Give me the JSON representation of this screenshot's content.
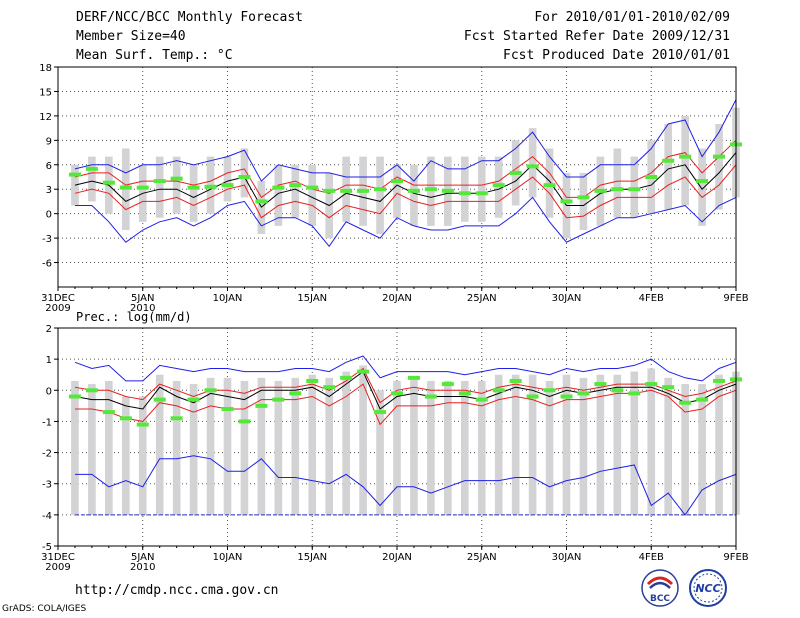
{
  "header": {
    "title": "DERF/NCC/BCC Monthly Forecast",
    "member_size": "Member Size=40",
    "variable": "Mean Surf. Temp.: °C",
    "period": "For 2010/01/01-2010/02/09",
    "started": "Fcst Started Refer Date 2009/12/31",
    "produced": "Fcst Produced Date 2010/01/01"
  },
  "footer": {
    "url": "http://cmdp.ncc.cma.gov.cn",
    "grads": "GrADS: COLA/IGES",
    "logo_bcc": "BCC",
    "logo_ncc": "NCC"
  },
  "colors": {
    "box": "#d3d3d5",
    "median": "#000000",
    "inner_band": "#e8201f",
    "outer_band": "#1f1fe8",
    "climate_mark": "#55e83a",
    "grid": "#555555"
  },
  "chart_data": [
    {
      "type": "box",
      "name": "temperature",
      "title": "Mean Surf. Temp.: °C",
      "ylim": [
        -9,
        18
      ],
      "yticks": [
        -6,
        -3,
        0,
        3,
        6,
        9,
        12,
        15,
        18
      ],
      "xlabels": [
        {
          "day": 0,
          "line1": "31DEC",
          "line2": "2009"
        },
        {
          "day": 5,
          "line1": "5JAN",
          "line2": "2010"
        },
        {
          "day": 10,
          "line1": "10JAN",
          "line2": ""
        },
        {
          "day": 15,
          "line1": "15JAN",
          "line2": ""
        },
        {
          "day": 20,
          "line1": "20JAN",
          "line2": ""
        },
        {
          "day": 25,
          "line1": "25JAN",
          "line2": ""
        },
        {
          "day": 30,
          "line1": "30JAN",
          "line2": ""
        },
        {
          "day": 35,
          "line1": "4FEB",
          "line2": ""
        },
        {
          "day": 40,
          "line1": "9FEB",
          "line2": ""
        }
      ],
      "days": [
        1,
        2,
        3,
        4,
        5,
        6,
        7,
        8,
        9,
        10,
        11,
        12,
        13,
        14,
        15,
        16,
        17,
        18,
        19,
        20,
        21,
        22,
        23,
        24,
        25,
        26,
        27,
        28,
        29,
        30,
        31,
        32,
        33,
        34,
        35,
        36,
        37,
        38,
        39,
        40
      ],
      "median": [
        3.5,
        4,
        3.5,
        1.5,
        2.5,
        3,
        3,
        2,
        3,
        4,
        4.5,
        0.8,
        2.5,
        3,
        2,
        1,
        2.5,
        2,
        1.5,
        3.5,
        2.5,
        2,
        2.5,
        2.5,
        2.5,
        3,
        4,
        6,
        4,
        1,
        1,
        2.5,
        3,
        3,
        3.5,
        5.5,
        6,
        3,
        5,
        7.5
      ],
      "inner_upper": [
        4.5,
        5,
        5,
        3.5,
        4,
        4,
        4,
        3.5,
        4,
        5,
        5.5,
        2,
        3.5,
        4,
        3,
        2.5,
        3.5,
        3.5,
        3,
        4.5,
        3.5,
        3.5,
        3.5,
        3.5,
        3.5,
        4,
        5.5,
        7,
        5,
        2,
        2,
        3.5,
        4,
        4,
        5,
        7,
        7.5,
        5,
        7,
        9
      ],
      "inner_lower": [
        2.5,
        3,
        2.5,
        0.5,
        1.5,
        1.5,
        2,
        1,
        2,
        3,
        3.5,
        -0.5,
        1,
        1.5,
        1,
        -0.5,
        1,
        0.5,
        0,
        2.5,
        1.5,
        1,
        1.5,
        1.5,
        1.5,
        1.5,
        3,
        4.5,
        2.5,
        -0.5,
        -0.3,
        1,
        2,
        2,
        2,
        3.5,
        4.5,
        2,
        3.5,
        6
      ],
      "outer_upper": [
        5.5,
        6,
        6,
        5,
        6,
        6,
        6.5,
        6,
        6.5,
        7,
        7.8,
        4,
        6,
        5.5,
        5,
        5,
        4.5,
        4.5,
        4.5,
        6,
        4,
        6.5,
        5.5,
        5.5,
        6.5,
        6.5,
        8,
        10,
        7,
        4.5,
        4.5,
        6,
        6,
        6,
        8,
        11,
        11.5,
        7,
        10,
        14
      ],
      "outer_lower": [
        1,
        1,
        -1,
        -3.5,
        -2,
        -1,
        -0.5,
        -1.5,
        -0.5,
        1,
        1.5,
        -1.5,
        -0.5,
        -0.5,
        -1.5,
        -4,
        -1,
        -2,
        -3,
        -0.5,
        -1.5,
        -2,
        -2,
        -1.5,
        -1.5,
        -1.5,
        0,
        2,
        -1,
        -3.5,
        -2.5,
        -1.5,
        -0.5,
        -0.5,
        0,
        0.5,
        1,
        -1,
        1,
        2
      ],
      "box_high": [
        6,
        7,
        7,
        8,
        6,
        7,
        7,
        6,
        7,
        7,
        8,
        4,
        6,
        6,
        6,
        5,
        7,
        7,
        7,
        6,
        6,
        7,
        7,
        7,
        7,
        7,
        9,
        10.5,
        8,
        5,
        5,
        7,
        8,
        7,
        9,
        11,
        12,
        8,
        11,
        13
      ],
      "box_low": [
        1,
        1.5,
        0,
        -2,
        -1,
        -0.5,
        0,
        -1,
        0,
        1.5,
        2,
        -2.5,
        -1.5,
        -0.5,
        -1.5,
        -3,
        -1,
        -1.5,
        -2.5,
        -0.5,
        -1.5,
        -1.5,
        -1.5,
        -1,
        -1,
        -0.5,
        1,
        2,
        -0.5,
        -3,
        -2,
        -1.5,
        -0.5,
        -0.5,
        0,
        0.5,
        1,
        -1.5,
        0.5,
        2
      ],
      "climate": [
        4.8,
        5.5,
        3.8,
        3.2,
        3.2,
        4,
        4.3,
        3.2,
        3.3,
        3.5,
        4.5,
        1.5,
        3.2,
        3.5,
        3.2,
        2.8,
        2.8,
        2.8,
        3,
        4,
        2.8,
        3,
        2.8,
        2.5,
        2.5,
        3.5,
        5,
        5.8,
        3.5,
        1.5,
        2,
        2.8,
        3,
        3,
        4.5,
        6.5,
        7,
        4,
        7,
        8.5
      ]
    },
    {
      "type": "box",
      "name": "precipitation",
      "title": "Prec.: log(mm/d)",
      "ylim": [
        -5,
        2
      ],
      "yticks": [
        -5,
        -4,
        -3,
        -2,
        -1,
        0,
        1,
        2
      ],
      "xlabels": [
        {
          "day": 0,
          "line1": "31DEC",
          "line2": "2009"
        },
        {
          "day": 5,
          "line1": "5JAN",
          "line2": "2010"
        },
        {
          "day": 10,
          "line1": "10JAN",
          "line2": ""
        },
        {
          "day": 15,
          "line1": "15JAN",
          "line2": ""
        },
        {
          "day": 20,
          "line1": "20JAN",
          "line2": ""
        },
        {
          "day": 25,
          "line1": "25JAN",
          "line2": ""
        },
        {
          "day": 30,
          "line1": "30JAN",
          "line2": ""
        },
        {
          "day": 35,
          "line1": "4FEB",
          "line2": ""
        },
        {
          "day": 40,
          "line1": "9FEB",
          "line2": ""
        }
      ],
      "days": [
        1,
        2,
        3,
        4,
        5,
        6,
        7,
        8,
        9,
        10,
        11,
        12,
        13,
        14,
        15,
        16,
        17,
        18,
        19,
        20,
        21,
        22,
        23,
        24,
        25,
        26,
        27,
        28,
        29,
        30,
        31,
        32,
        33,
        34,
        35,
        36,
        37,
        38,
        39,
        40
      ],
      "median": [
        -0.2,
        -0.3,
        -0.3,
        -0.5,
        -0.6,
        0.1,
        -0.2,
        -0.4,
        -0.1,
        -0.2,
        -0.3,
        0,
        0,
        0,
        0.1,
        -0.2,
        0.2,
        0.6,
        -0.6,
        -0.2,
        -0.1,
        -0.2,
        -0.2,
        -0.2,
        -0.3,
        -0.1,
        0.1,
        0,
        -0.2,
        0,
        -0.1,
        0,
        0.1,
        0.1,
        0.1,
        -0.1,
        -0.4,
        -0.3,
        0,
        0.2
      ],
      "inner_upper": [
        0.1,
        0,
        0,
        -0.2,
        -0.3,
        0.2,
        0,
        -0.2,
        0,
        0,
        -0.1,
        0.1,
        0.1,
        0.1,
        0.2,
        0,
        0.3,
        0.7,
        -0.4,
        0,
        0.1,
        0,
        0,
        0,
        -0.1,
        0.1,
        0.2,
        0.1,
        0,
        0.1,
        0,
        0.1,
        0.2,
        0.2,
        0.2,
        0,
        -0.2,
        -0.1,
        0.1,
        0.3
      ],
      "inner_lower": [
        -0.6,
        -0.6,
        -0.7,
        -0.9,
        -1,
        -0.4,
        -0.5,
        -0.7,
        -0.5,
        -0.6,
        -0.6,
        -0.3,
        -0.3,
        -0.3,
        -0.2,
        -0.5,
        -0.2,
        0.2,
        -1.1,
        -0.5,
        -0.5,
        -0.5,
        -0.4,
        -0.4,
        -0.5,
        -0.3,
        -0.2,
        -0.3,
        -0.5,
        -0.3,
        -0.3,
        -0.2,
        -0.1,
        -0.1,
        0,
        -0.2,
        -0.7,
        -0.6,
        -0.2,
        0
      ],
      "outer_upper": [
        0.9,
        0.7,
        0.8,
        0.3,
        0.3,
        0.8,
        0.7,
        0.6,
        0.7,
        0.7,
        0.6,
        0.6,
        0.6,
        0.7,
        0.7,
        0.6,
        0.9,
        1.1,
        0.4,
        0.6,
        0.6,
        0.6,
        0.6,
        0.5,
        0.6,
        0.7,
        0.7,
        0.6,
        0.5,
        0.7,
        0.6,
        0.7,
        0.7,
        0.8,
        1,
        0.6,
        0.4,
        0.3,
        0.7,
        0.9
      ],
      "outer_lower": [
        -2.7,
        -2.7,
        -3.1,
        -2.9,
        -3.1,
        -2.2,
        -2.2,
        -2.1,
        -2.2,
        -2.6,
        -2.6,
        -2.2,
        -2.8,
        -2.8,
        -2.9,
        -3,
        -2.7,
        -3.1,
        -3.7,
        -3.1,
        -3.1,
        -3.3,
        -3.1,
        -2.9,
        -2.9,
        -2.9,
        -2.8,
        -2.8,
        -3.1,
        -2.9,
        -2.8,
        -2.6,
        -2.5,
        -2.4,
        -3.7,
        -3.3,
        -4,
        -3.2,
        -2.9,
        -2.7
      ],
      "floor": -4,
      "box_high": [
        0.3,
        0.2,
        0.3,
        -0.2,
        -0.2,
        0.5,
        0.3,
        0.2,
        0.4,
        0.4,
        0.3,
        0.4,
        0.3,
        0.4,
        0.5,
        0.4,
        0.6,
        0.8,
        0,
        0.3,
        0.4,
        0.3,
        0.3,
        0.3,
        0.3,
        0.5,
        0.5,
        0.5,
        0.3,
        0.5,
        0.4,
        0.5,
        0.5,
        0.6,
        0.7,
        0.4,
        0.2,
        0.2,
        0.5,
        0.6
      ],
      "box_low": [
        -4,
        -4,
        -4,
        -4,
        -4,
        -4,
        -4,
        -4,
        -4,
        -4,
        -4,
        -4,
        -4,
        -4,
        -4,
        -4,
        -4,
        -4,
        -4,
        -4,
        -4,
        -4,
        -4,
        -4,
        -4,
        -4,
        -4,
        -4,
        -4,
        -4,
        -4,
        -4,
        -4,
        -4,
        -4,
        -4,
        -4,
        -4,
        -4,
        -4
      ],
      "climate": [
        -0.2,
        0,
        -0.7,
        -0.9,
        -1.1,
        -0.3,
        -0.9,
        -0.3,
        0,
        -0.6,
        -1,
        -0.5,
        -0.3,
        -0.1,
        0.3,
        0.1,
        0.4,
        0.6,
        -0.7,
        -0.1,
        0.4,
        -0.2,
        0.2,
        -0.1,
        -0.3,
        0,
        0.3,
        -0.2,
        0,
        -0.2,
        -0.1,
        0.2,
        0,
        -0.1,
        0.2,
        0.1,
        -0.4,
        -0.3,
        0.3,
        0.35
      ]
    }
  ]
}
